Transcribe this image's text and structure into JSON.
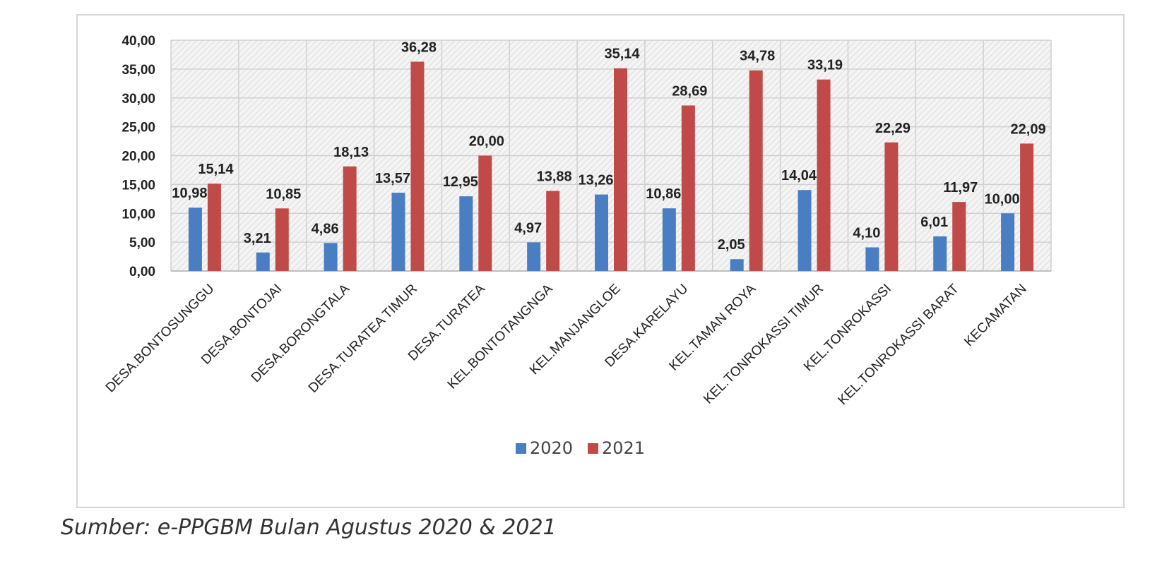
{
  "chart_data": {
    "type": "bar",
    "categories": [
      "DESA.BONTOSUNGGU",
      "DESA.BONTOJAI",
      "DESA.BORONGTALA",
      "DESA.TURATEA TIMUR",
      "DESA.TURATEA",
      "KEL.BONTOTANGNGA",
      "KEL.MANJANGLOE",
      "DESA.KARELAYU",
      "KEL.TAMAN ROYA",
      "KEL.TONROKASSI TIMUR",
      "KEL.TONROKASSI",
      "KEL.TONROKASSI BARAT",
      "KECAMATAN"
    ],
    "series": [
      {
        "name": "2020",
        "color": "#4a7ec2",
        "values": [
          10.98,
          3.21,
          4.86,
          13.57,
          12.95,
          4.97,
          13.26,
          10.86,
          2.05,
          14.04,
          4.1,
          6.01,
          10.0
        ],
        "labels": [
          "10,98",
          "3,21",
          "4,86",
          "13,57",
          "12,95",
          "4,97",
          "13,26",
          "10,86",
          "2,05",
          "14,04",
          "4,10",
          "6,01",
          "10,00"
        ]
      },
      {
        "name": "2021",
        "color": "#c04a47",
        "values": [
          15.14,
          10.85,
          18.13,
          36.28,
          20.0,
          13.88,
          35.14,
          28.69,
          34.78,
          33.19,
          22.29,
          11.97,
          22.09
        ],
        "labels": [
          "15,14",
          "10,85",
          "18,13",
          "36,28",
          "20,00",
          "13,88",
          "35,14",
          "28,69",
          "34,78",
          "33,19",
          "22,29",
          "11,97",
          "22,09"
        ]
      }
    ],
    "yticks": [
      "0,00",
      "5,00",
      "10,00",
      "15,00",
      "20,00",
      "25,00",
      "30,00",
      "35,00",
      "40,00"
    ],
    "ylim": [
      0,
      40
    ],
    "grid": true,
    "legend": "bottom"
  },
  "source": "Sumber: e-PPGBM Bulan Agustus 2020 & 2021"
}
